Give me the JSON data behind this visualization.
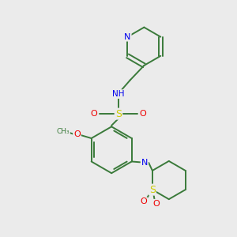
{
  "background_color": "#ebebeb",
  "bond_color": "#3a7a3a",
  "atom_colors": {
    "N": "#0000ee",
    "O": "#ee0000",
    "S": "#cccc00",
    "H": "#888888",
    "C": "#3a7a3a"
  },
  "lw": 1.4
}
